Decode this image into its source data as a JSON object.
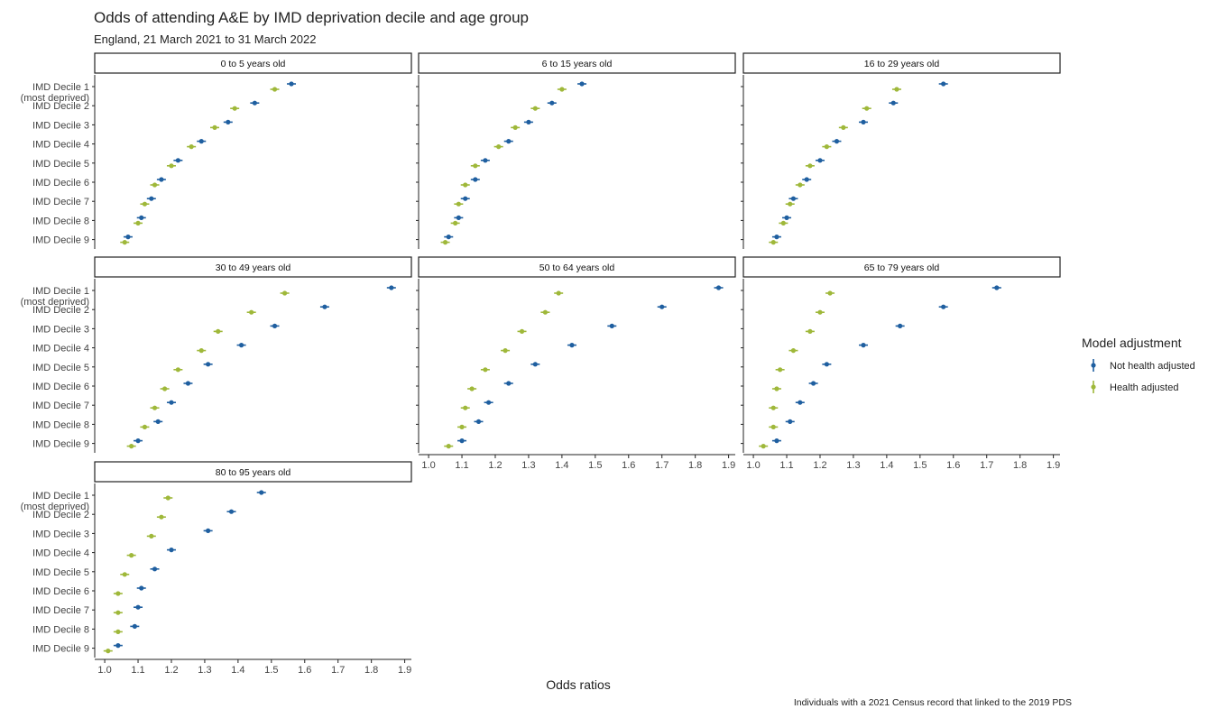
{
  "chart_data": {
    "type": "scatter",
    "title": "Odds of attending A&E by IMD deprivation decile and age group",
    "subtitle": "England, 21 March 2021 to 31 March 2022",
    "xlabel": "Odds ratios",
    "caption": "Individuals with a 2021 Census record that linked to the 2019 PDS",
    "xlim": [
      0.97,
      1.92
    ],
    "xticks": [
      1.0,
      1.1,
      1.2,
      1.3,
      1.4,
      1.5,
      1.6,
      1.7,
      1.8,
      1.9
    ],
    "xtick_labels": [
      "1.0",
      "1.1",
      "1.2",
      "1.3",
      "1.4",
      "1.5",
      "1.6",
      "1.7",
      "1.8",
      "1.9"
    ],
    "categories": [
      "IMD Decile 1\n(most deprived)",
      "IMD Decile 2",
      "IMD Decile 3",
      "IMD Decile 4",
      "IMD Decile 5",
      "IMD Decile 6",
      "IMD Decile 7",
      "IMD Decile 8",
      "IMD Decile 9"
    ],
    "legend": {
      "title": "Model adjustment",
      "position": "right",
      "items": [
        {
          "name": "Not health adjusted",
          "color": "#1f5fa0"
        },
        {
          "name": "Health adjusted",
          "color": "#9fb83a"
        }
      ]
    },
    "grid": false,
    "panels": [
      {
        "label": "0 to 5 years old",
        "series": [
          {
            "name": "Not health adjusted",
            "values": [
              1.56,
              1.45,
              1.37,
              1.29,
              1.22,
              1.17,
              1.14,
              1.11,
              1.07
            ]
          },
          {
            "name": "Health adjusted",
            "values": [
              1.51,
              1.39,
              1.33,
              1.26,
              1.2,
              1.15,
              1.12,
              1.1,
              1.06
            ]
          }
        ]
      },
      {
        "label": "6 to 15 years old",
        "series": [
          {
            "name": "Not health adjusted",
            "values": [
              1.46,
              1.37,
              1.3,
              1.24,
              1.17,
              1.14,
              1.11,
              1.09,
              1.06
            ]
          },
          {
            "name": "Health adjusted",
            "values": [
              1.4,
              1.32,
              1.26,
              1.21,
              1.14,
              1.11,
              1.09,
              1.08,
              1.05
            ]
          }
        ]
      },
      {
        "label": "16 to 29 years old",
        "series": [
          {
            "name": "Not health adjusted",
            "values": [
              1.57,
              1.42,
              1.33,
              1.25,
              1.2,
              1.16,
              1.12,
              1.1,
              1.07
            ]
          },
          {
            "name": "Health adjusted",
            "values": [
              1.43,
              1.34,
              1.27,
              1.22,
              1.17,
              1.14,
              1.11,
              1.09,
              1.06
            ]
          }
        ]
      },
      {
        "label": "30 to 49 years old",
        "series": [
          {
            "name": "Not health adjusted",
            "values": [
              1.86,
              1.66,
              1.51,
              1.41,
              1.31,
              1.25,
              1.2,
              1.16,
              1.1
            ]
          },
          {
            "name": "Health adjusted",
            "values": [
              1.54,
              1.44,
              1.34,
              1.29,
              1.22,
              1.18,
              1.15,
              1.12,
              1.08
            ]
          }
        ]
      },
      {
        "label": "50 to 64 years old",
        "series": [
          {
            "name": "Not health adjusted",
            "values": [
              1.87,
              1.7,
              1.55,
              1.43,
              1.32,
              1.24,
              1.18,
              1.15,
              1.1
            ]
          },
          {
            "name": "Health adjusted",
            "values": [
              1.39,
              1.35,
              1.28,
              1.23,
              1.17,
              1.13,
              1.11,
              1.1,
              1.06
            ]
          }
        ]
      },
      {
        "label": "65 to 79 years old",
        "series": [
          {
            "name": "Not health adjusted",
            "values": [
              1.73,
              1.57,
              1.44,
              1.33,
              1.22,
              1.18,
              1.14,
              1.11,
              1.07
            ]
          },
          {
            "name": "Health adjusted",
            "values": [
              1.23,
              1.2,
              1.17,
              1.12,
              1.08,
              1.07,
              1.06,
              1.06,
              1.03
            ]
          }
        ]
      },
      {
        "label": "80 to 95 years old",
        "series": [
          {
            "name": "Not health adjusted",
            "values": [
              1.47,
              1.38,
              1.31,
              1.2,
              1.15,
              1.11,
              1.1,
              1.09,
              1.04
            ]
          },
          {
            "name": "Health adjusted",
            "values": [
              1.19,
              1.17,
              1.14,
              1.08,
              1.06,
              1.04,
              1.04,
              1.04,
              1.01
            ]
          }
        ]
      }
    ]
  }
}
